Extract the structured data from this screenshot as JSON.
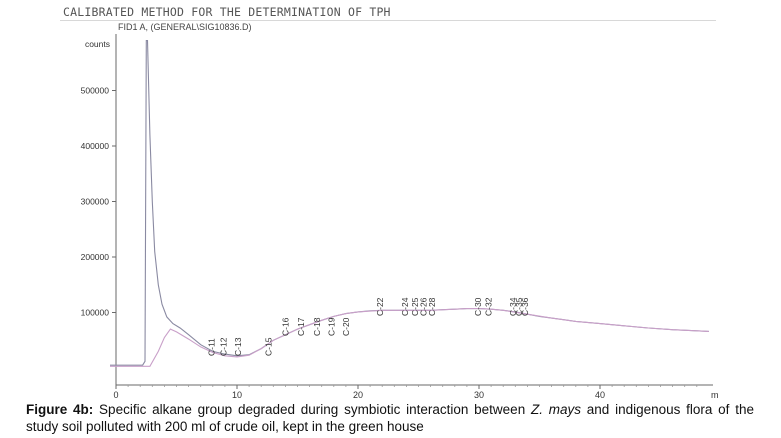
{
  "header": {
    "title": "CALIBRATED METHOD FOR THE DETERMINATION OF TPH",
    "signal": "FID1 A, (GENERAL\\SIG10836.D)"
  },
  "chart_data": {
    "type": "line",
    "title": "CALIBRATED METHOD FOR THE DETERMINATION OF TPH",
    "signal": "FID1 A, (GENERAL\\SIG10836.D)",
    "ylabel": "counts",
    "xlabel": "m",
    "xlim": [
      0,
      49
    ],
    "ylim": [
      0,
      590000
    ],
    "x_ticks": [
      0,
      10,
      20,
      30,
      40
    ],
    "y_ticks": [
      100000,
      200000,
      300000,
      400000,
      500000
    ],
    "grid": false,
    "series": [
      {
        "color": "#8a8aa2",
        "x": [
          -0.5,
          2.2,
          2.4,
          2.5,
          2.6,
          2.8,
          3.0,
          3.2,
          3.5,
          3.8,
          4.2,
          4.7,
          5.3,
          6.0,
          7.0,
          8.0,
          9.0,
          10.0,
          11.0,
          12.0,
          13.0,
          14.0,
          15.0,
          16.0,
          17.0,
          18.0,
          19.0,
          20.0,
          21.0,
          22.0,
          23.0,
          24.0,
          25.0,
          26.0,
          27.0,
          28.0,
          29.0,
          30.0,
          31.0,
          32.0,
          33.0,
          34.0,
          35.0,
          36.0,
          37.0,
          38.0,
          40.0,
          42.0,
          44.0,
          46.0,
          48.0,
          49.0
        ],
        "y": [
          5000,
          5000,
          12000,
          590000,
          590000,
          420000,
          300000,
          210000,
          150000,
          115000,
          92000,
          80000,
          72000,
          60000,
          42000,
          30000,
          25000,
          22000,
          24000,
          35000,
          50000,
          60000,
          70000,
          78000,
          86000,
          93000,
          98000,
          101000,
          103000,
          104000,
          104000,
          104000,
          104000,
          104000,
          105000,
          106000,
          107000,
          107000,
          106000,
          104000,
          101000,
          97000,
          93000,
          90000,
          87000,
          84000,
          80000,
          76000,
          72000,
          69000,
          67000,
          66000
        ]
      },
      {
        "color": "#c9a0c9",
        "x": [
          -0.5,
          2.8,
          3.5,
          4.0,
          4.5,
          5.0,
          6.0,
          7.0,
          8.0,
          9.0,
          10.0,
          11.0,
          12.0,
          13.0,
          14.0,
          15.0,
          16.0,
          17.0,
          18.0,
          19.0,
          20.0,
          22.0,
          24.0,
          26.0,
          28.0,
          29.0,
          30.0,
          31.0,
          32.0,
          34.0,
          36.0,
          38.0,
          40.0,
          42.0,
          44.0,
          46.0,
          48.0,
          49.0
        ],
        "y": [
          3000,
          3000,
          30000,
          55000,
          70000,
          65000,
          52000,
          38000,
          28000,
          22000,
          20000,
          23000,
          35000,
          50000,
          60000,
          70000,
          78000,
          86000,
          93000,
          98000,
          101000,
          104000,
          104000,
          104000,
          106000,
          107000,
          107000,
          106000,
          104000,
          97000,
          90000,
          84000,
          80000,
          76000,
          72000,
          69000,
          67000,
          66000
        ]
      }
    ],
    "peaks": [
      {
        "label": "C-11",
        "x": 7.9
      },
      {
        "label": "C-12",
        "x": 8.9
      },
      {
        "label": "C-13",
        "x": 10.1
      },
      {
        "label": "C-15",
        "x": 12.6
      },
      {
        "label": "C-16",
        "x": 14.0
      },
      {
        "label": "C-17",
        "x": 15.3
      },
      {
        "label": "C-18",
        "x": 16.6
      },
      {
        "label": "C-19",
        "x": 17.8
      },
      {
        "label": "C-20",
        "x": 19.0
      },
      {
        "label": "C-22",
        "x": 21.8
      },
      {
        "label": "C-24",
        "x": 23.9
      },
      {
        "label": "C-25",
        "x": 24.7
      },
      {
        "label": "C-26",
        "x": 25.4
      },
      {
        "label": "C-28",
        "x": 26.1
      },
      {
        "label": "C-30",
        "x": 29.9
      },
      {
        "label": "C-32",
        "x": 30.8
      },
      {
        "label": "C-34",
        "x": 32.8
      },
      {
        "label": "C-35",
        "x": 33.3
      },
      {
        "label": "C-36",
        "x": 33.8
      }
    ]
  },
  "caption": {
    "label": "Figure 4b:",
    "text_before": " Specific alkane group degraded during symbiotic interaction between ",
    "species": "Z. mays",
    "text_after": " and indigenous flora of the study soil polluted with 200 ml of crude oil, kept in the green house"
  }
}
